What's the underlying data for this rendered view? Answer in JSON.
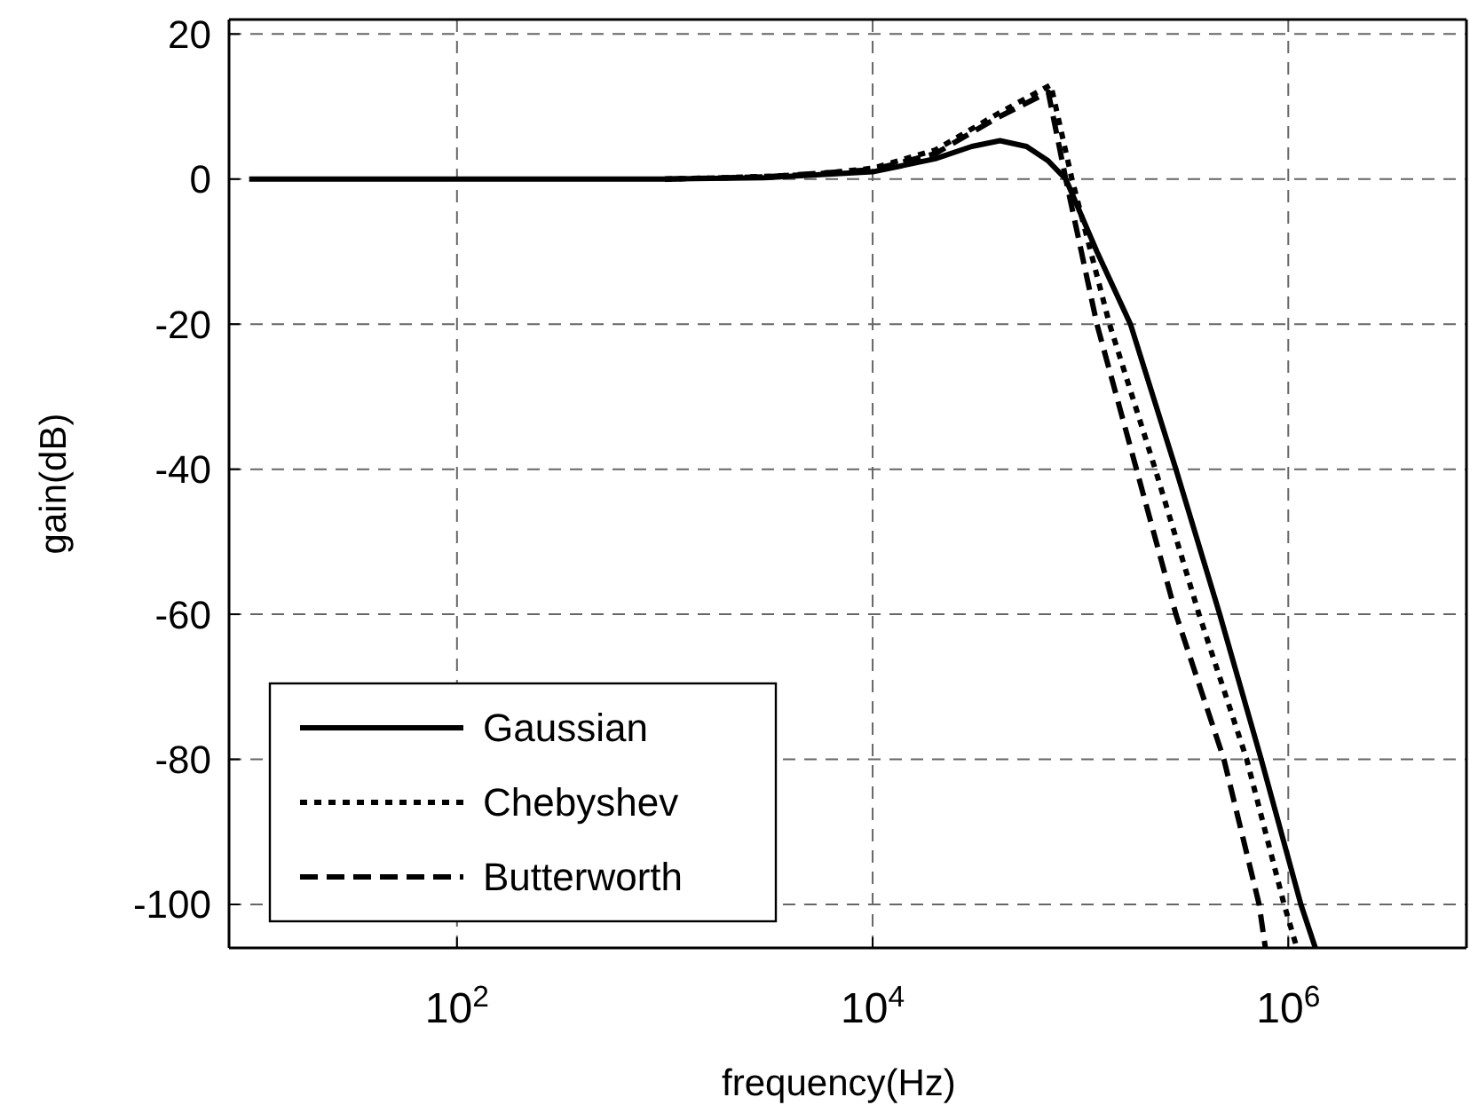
{
  "chart_data": {
    "type": "line",
    "xlabel": "frequency(Hz)",
    "ylabel": "gain(dB)",
    "log": "x",
    "xlim": [
      8,
      7200000
    ],
    "ylim": [
      -106,
      22
    ],
    "xticks": [
      {
        "value": 100,
        "label": "10$^{2}$"
      },
      {
        "value": 10000,
        "label": "10$^{4}$"
      },
      {
        "value": 1000000,
        "label": "10$^{6}$"
      }
    ],
    "yticks": [
      -100,
      -80,
      -60,
      -40,
      -20,
      0,
      20
    ],
    "grid": true,
    "legend": "bottom left",
    "marker": "none",
    "series": [
      {
        "name": "Gaussian",
        "color": "#000000",
        "line_style": "solid",
        "x": [
          10,
          1000,
          3000,
          10000,
          20000,
          30000,
          41000,
          55000,
          70000,
          85000,
          120000,
          174000,
          288000,
          468000,
          741000,
          1150000,
          1350000
        ],
        "values": [
          0,
          0,
          0.2,
          1,
          2.8,
          4.5,
          5.3,
          4.5,
          2.5,
          0,
          -10,
          -20,
          -40,
          -60,
          -80,
          -100,
          -106
        ]
      },
      {
        "name": "Chebyshev",
        "color": "#000000",
        "line_style": "dotted",
        "x": [
          1000,
          2000,
          5000,
          10000,
          20000,
          40000,
          72000,
          91000,
          138000,
          229000,
          372000,
          631000,
          955000,
          1100000
        ],
        "values": [
          0,
          0.2,
          0.6,
          1.5,
          4,
          9,
          13,
          0,
          -20,
          -40,
          -60,
          -80,
          -100,
          -106
        ]
      },
      {
        "name": "Butterworth",
        "color": "#000000",
        "line_style": "dashed",
        "x": [
          1000,
          3000,
          10000,
          20000,
          40000,
          70000,
          85000,
          120000,
          186000,
          288000,
          490000,
          724000,
          776000
        ],
        "values": [
          0,
          0.3,
          1.3,
          3.5,
          8.5,
          12,
          0,
          -20,
          -40,
          -60,
          -80,
          -100,
          -106
        ]
      }
    ]
  }
}
